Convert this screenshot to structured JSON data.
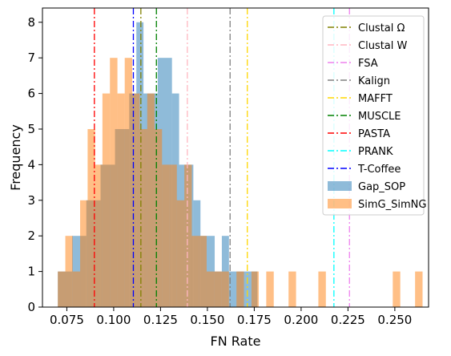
{
  "chart_data": {
    "type": "histogram",
    "title": "",
    "xlabel": "FN Rate",
    "ylabel": "Frequency",
    "xlim": [
      0.062,
      0.268
    ],
    "ylim": [
      0,
      8.4
    ],
    "xticks": [
      0.075,
      0.1,
      0.125,
      0.15,
      0.175,
      0.2,
      0.225,
      0.25
    ],
    "xtick_labels": [
      "0.075",
      "0.100",
      "0.125",
      "0.150",
      "0.175",
      "0.200",
      "0.225",
      "0.250"
    ],
    "yticks": [
      0,
      1,
      2,
      3,
      4,
      5,
      6,
      7,
      8
    ],
    "ytick_labels": [
      "0",
      "1",
      "2",
      "3",
      "4",
      "5",
      "6",
      "7",
      "8"
    ],
    "grid": false,
    "legend_position": "top-right",
    "series": [
      {
        "name": "Gap_SOP",
        "color": "#1f77b4",
        "opacity": 0.5,
        "bins": [
          {
            "x0": 0.0702,
            "x1": 0.0778,
            "count": 1
          },
          {
            "x0": 0.0778,
            "x1": 0.0854,
            "count": 2
          },
          {
            "x0": 0.0854,
            "x1": 0.093,
            "count": 3
          },
          {
            "x0": 0.093,
            "x1": 0.1007,
            "count": 4
          },
          {
            "x0": 0.1007,
            "x1": 0.1083,
            "count": 5
          },
          {
            "x0": 0.1083,
            "x1": 0.1121,
            "count": 6
          },
          {
            "x0": 0.1121,
            "x1": 0.1159,
            "count": 8
          },
          {
            "x0": 0.1159,
            "x1": 0.1235,
            "count": 6
          },
          {
            "x0": 0.1235,
            "x1": 0.1311,
            "count": 7
          },
          {
            "x0": 0.1311,
            "x1": 0.1349,
            "count": 6
          },
          {
            "x0": 0.1349,
            "x1": 0.1387,
            "count": 4
          },
          {
            "x0": 0.1387,
            "x1": 0.1425,
            "count": 4
          },
          {
            "x0": 0.1425,
            "x1": 0.1463,
            "count": 3
          },
          {
            "x0": 0.1463,
            "x1": 0.1539,
            "count": 2
          },
          {
            "x0": 0.1539,
            "x1": 0.1577,
            "count": 1
          },
          {
            "x0": 0.1577,
            "x1": 0.1615,
            "count": 2
          },
          {
            "x0": 0.1615,
            "x1": 0.1691,
            "count": 1
          },
          {
            "x0": 0.1691,
            "x1": 0.1729,
            "count": 1
          },
          {
            "x0": 0.1729,
            "x1": 0.1767,
            "count": 1
          }
        ]
      },
      {
        "name": "SimG_SimNG",
        "color": "#ff7f0e",
        "opacity": 0.5,
        "bins": [
          {
            "x0": 0.0702,
            "x1": 0.0742,
            "count": 1
          },
          {
            "x0": 0.0742,
            "x1": 0.0781,
            "count": 2
          },
          {
            "x0": 0.0781,
            "x1": 0.0821,
            "count": 1
          },
          {
            "x0": 0.0821,
            "x1": 0.0861,
            "count": 3
          },
          {
            "x0": 0.0861,
            "x1": 0.0901,
            "count": 5
          },
          {
            "x0": 0.0901,
            "x1": 0.094,
            "count": 4
          },
          {
            "x0": 0.094,
            "x1": 0.098,
            "count": 6
          },
          {
            "x0": 0.098,
            "x1": 0.102,
            "count": 7
          },
          {
            "x0": 0.102,
            "x1": 0.1059,
            "count": 6
          },
          {
            "x0": 0.1059,
            "x1": 0.1099,
            "count": 7
          },
          {
            "x0": 0.1099,
            "x1": 0.1139,
            "count": 6
          },
          {
            "x0": 0.1139,
            "x1": 0.1179,
            "count": 5
          },
          {
            "x0": 0.1179,
            "x1": 0.1218,
            "count": 6
          },
          {
            "x0": 0.1218,
            "x1": 0.1258,
            "count": 5
          },
          {
            "x0": 0.1258,
            "x1": 0.1298,
            "count": 4
          },
          {
            "x0": 0.1298,
            "x1": 0.1337,
            "count": 4
          },
          {
            "x0": 0.1337,
            "x1": 0.1377,
            "count": 3
          },
          {
            "x0": 0.1377,
            "x1": 0.1417,
            "count": 4
          },
          {
            "x0": 0.1417,
            "x1": 0.1457,
            "count": 2
          },
          {
            "x0": 0.1457,
            "x1": 0.1496,
            "count": 2
          },
          {
            "x0": 0.1496,
            "x1": 0.1536,
            "count": 1
          },
          {
            "x0": 0.1536,
            "x1": 0.1576,
            "count": 1
          },
          {
            "x0": 0.1576,
            "x1": 0.1615,
            "count": 1
          },
          {
            "x0": 0.1655,
            "x1": 0.1695,
            "count": 1
          },
          {
            "x0": 0.1735,
            "x1": 0.1774,
            "count": 1
          },
          {
            "x0": 0.1814,
            "x1": 0.1854,
            "count": 1
          },
          {
            "x0": 0.1933,
            "x1": 0.1973,
            "count": 1
          },
          {
            "x0": 0.2092,
            "x1": 0.2132,
            "count": 1
          },
          {
            "x0": 0.2489,
            "x1": 0.2529,
            "count": 1
          },
          {
            "x0": 0.2608,
            "x1": 0.2648,
            "count": 1
          }
        ]
      }
    ],
    "vlines": [
      {
        "name": "Clustal Ω",
        "x": 0.1145,
        "color": "#808000"
      },
      {
        "name": "Clustal W",
        "x": 0.1393,
        "color": "#ffb6c1"
      },
      {
        "name": "FSA",
        "x": 0.2258,
        "color": "#ee82ee"
      },
      {
        "name": "Kalign",
        "x": 0.1621,
        "color": "#808080"
      },
      {
        "name": "MAFFT",
        "x": 0.1713,
        "color": "#ffd700"
      },
      {
        "name": "MUSCLE",
        "x": 0.1228,
        "color": "#008000"
      },
      {
        "name": "PASTA",
        "x": 0.0897,
        "color": "#ff0000"
      },
      {
        "name": "PRANK",
        "x": 0.2175,
        "color": "#00ffff"
      },
      {
        "name": "T-Coffee",
        "x": 0.1105,
        "color": "#0000ff"
      }
    ]
  }
}
